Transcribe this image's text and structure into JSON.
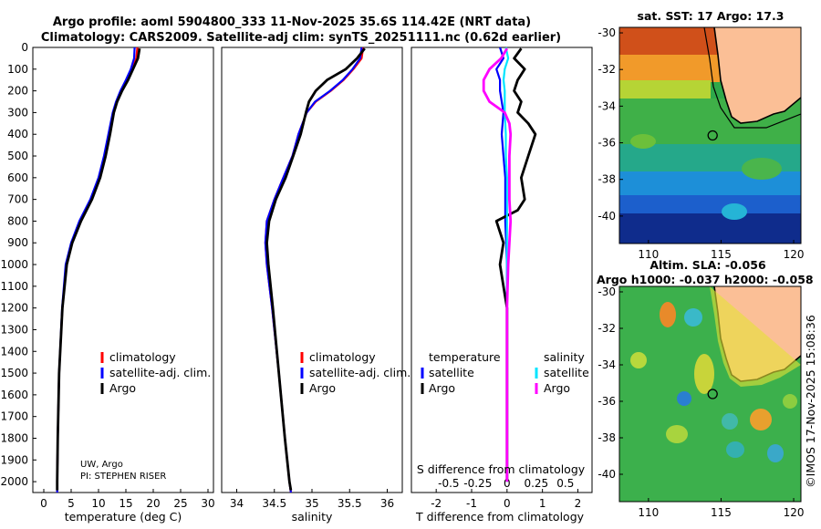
{
  "titles": {
    "line1": "Argo profile: aoml 5904800_333 11-Nov-2025 35.6S 114.42E (NRT data)",
    "line2": "Climatology: CARS2009. Satellite-adj clim: synTS_20251111.nc (0.62d earlier)"
  },
  "depth_ticks": [
    "0",
    "100",
    "200",
    "300",
    "400",
    "500",
    "600",
    "700",
    "800",
    "900",
    "1000",
    "1100",
    "1200",
    "1300",
    "1400",
    "1500",
    "1600",
    "1700",
    "1800",
    "1900",
    "2000"
  ],
  "credits": {
    "line1": "UW, Argo",
    "line2": "PI: STEPHEN RISER"
  },
  "legend_common": [
    "climatology",
    "satellite-adj. clim.",
    "Argo"
  ],
  "legend_diff": {
    "temp_title": "temperature",
    "sal_title": "salinity",
    "temp_items": [
      "satellite",
      "Argo"
    ],
    "sal_items": [
      "satellite",
      "Argo"
    ]
  },
  "colors": {
    "climatology": "#ff0000",
    "satellite": "#0000ff",
    "argo": "#000000",
    "sal_sat": "#00e5ff",
    "sal_argo": "#ff00ff"
  },
  "chart_data": [
    {
      "type": "line",
      "xlabel": "temperature (deg C)",
      "ylabel": "",
      "xlim": [
        -2,
        31
      ],
      "ylim": [
        2050,
        0
      ],
      "xticks": [
        "0",
        "5",
        "10",
        "15",
        "20",
        "25",
        "30"
      ],
      "series": [
        {
          "name": "climatology",
          "depth": [
            0,
            50,
            100,
            150,
            200,
            250,
            300,
            400,
            500,
            600,
            700,
            800,
            900,
            1000,
            1200,
            1500,
            1800,
            2000,
            2050
          ],
          "values": [
            17.1,
            16.9,
            16.2,
            15.2,
            14.2,
            13.3,
            12.7,
            11.9,
            11.1,
            10.1,
            8.6,
            6.6,
            5.1,
            4.1,
            3.4,
            2.8,
            2.55,
            2.45,
            2.45
          ]
        },
        {
          "name": "satellite-adj. clim.",
          "depth": [
            0,
            50,
            100,
            150,
            200,
            250,
            300,
            400,
            500,
            600,
            700,
            800,
            900,
            1000,
            1200,
            1500,
            1800,
            2000,
            2050
          ],
          "values": [
            16.6,
            16.5,
            15.9,
            15.0,
            14.0,
            13.2,
            12.6,
            11.8,
            11.0,
            10.0,
            8.5,
            6.5,
            5.0,
            4.0,
            3.35,
            2.8,
            2.55,
            2.45,
            2.45
          ]
        },
        {
          "name": "Argo",
          "depth": [
            5,
            50,
            100,
            150,
            200,
            250,
            300,
            400,
            500,
            600,
            700,
            800,
            900,
            1000,
            1200,
            1500,
            1800,
            2000,
            2040
          ],
          "values": [
            17.5,
            17.2,
            16.3,
            15.4,
            14.3,
            13.4,
            12.8,
            12.1,
            11.3,
            10.3,
            8.8,
            6.8,
            5.2,
            4.2,
            3.4,
            2.8,
            2.55,
            2.45,
            2.45
          ]
        }
      ]
    },
    {
      "type": "line",
      "xlabel": "salinity",
      "ylabel": "",
      "xlim": [
        33.8,
        36.2
      ],
      "ylim": [
        2050,
        0
      ],
      "xticks": [
        "34",
        "34.5",
        "35",
        "35.5",
        "36"
      ],
      "series": [
        {
          "name": "climatology",
          "depth": [
            0,
            50,
            100,
            150,
            200,
            250,
            300,
            400,
            500,
            600,
            700,
            800,
            900,
            1000,
            1200,
            1500,
            1800,
            2000,
            2050
          ],
          "values": [
            35.68,
            35.66,
            35.55,
            35.42,
            35.25,
            35.05,
            34.93,
            34.82,
            34.74,
            34.62,
            34.5,
            34.4,
            34.38,
            34.4,
            34.47,
            34.56,
            34.64,
            34.7,
            34.72
          ]
        },
        {
          "name": "satellite-adj. clim.",
          "depth": [
            0,
            50,
            100,
            150,
            200,
            250,
            300,
            400,
            500,
            600,
            700,
            800,
            900,
            1000,
            1200,
            1500,
            1800,
            2000,
            2050
          ],
          "values": [
            35.66,
            35.64,
            35.54,
            35.41,
            35.24,
            35.04,
            34.93,
            34.82,
            34.74,
            34.62,
            34.5,
            34.4,
            34.38,
            34.4,
            34.47,
            34.56,
            34.64,
            34.7,
            34.72
          ]
        },
        {
          "name": "Argo",
          "depth": [
            5,
            50,
            100,
            150,
            200,
            250,
            300,
            400,
            500,
            600,
            700,
            800,
            900,
            1000,
            1200,
            1500,
            1800,
            2000,
            2040
          ],
          "values": [
            35.7,
            35.6,
            35.45,
            35.2,
            35.05,
            34.96,
            34.92,
            34.85,
            34.75,
            34.65,
            34.52,
            34.43,
            34.4,
            34.42,
            34.48,
            34.56,
            34.64,
            34.7,
            34.72
          ]
        }
      ]
    },
    {
      "type": "line",
      "xlabel": "T difference from climatology",
      "ylabel": "",
      "xlim": [
        -2.7,
        2.4
      ],
      "ylim": [
        2050,
        0
      ],
      "xticks": [
        "-2",
        "-1",
        "0",
        "1",
        "2"
      ],
      "second_axis": {
        "label": "S difference from climatology",
        "ticks": [
          "-0.5",
          "-0.25",
          "0",
          "0.25",
          "0.5"
        ]
      },
      "series": [
        {
          "name": "temperature satellite",
          "depth": [
            0,
            50,
            100,
            150,
            200,
            300,
            400,
            500,
            600,
            800,
            1000,
            1200,
            1500,
            1800,
            2000
          ],
          "values": [
            -0.2,
            -0.1,
            -0.3,
            -0.2,
            -0.2,
            -0.1,
            -0.15,
            -0.1,
            -0.05,
            -0.05,
            0,
            0,
            0,
            0,
            0
          ]
        },
        {
          "name": "temperature Argo",
          "depth": [
            5,
            50,
            100,
            150,
            200,
            250,
            300,
            350,
            400,
            500,
            600,
            700,
            750,
            800,
            900,
            1000,
            1100,
            1200,
            1500,
            1800,
            2000
          ],
          "values": [
            0.4,
            0.2,
            0.5,
            0.3,
            0.2,
            0.4,
            0.3,
            0.6,
            0.8,
            0.6,
            0.4,
            0.5,
            0.3,
            -0.3,
            -0.1,
            -0.2,
            -0.1,
            0,
            0,
            0,
            0
          ]
        },
        {
          "name": "salinity satellite",
          "depth": [
            0,
            50,
            100,
            150,
            200,
            300,
            400,
            500,
            600,
            800,
            1000,
            1200,
            1500,
            1800,
            2000
          ],
          "values": [
            -0.01,
            0.01,
            -0.02,
            -0.03,
            -0.02,
            -0.02,
            -0.01,
            -0.01,
            0,
            0,
            0,
            0,
            0,
            0,
            0
          ]
        },
        {
          "name": "salinity Argo",
          "depth": [
            5,
            50,
            100,
            150,
            200,
            250,
            300,
            350,
            400,
            500,
            600,
            700,
            800,
            900,
            1000,
            1200,
            1500,
            1800,
            2000
          ],
          "values": [
            0.0,
            -0.05,
            -0.15,
            -0.2,
            -0.2,
            -0.15,
            -0.02,
            0.02,
            0.03,
            0.02,
            0.02,
            0.02,
            0.03,
            0.02,
            0.01,
            0,
            0,
            0,
            0
          ]
        }
      ]
    },
    {
      "type": "heatmap",
      "title": "sat. SST: 17 Argo: 17.3",
      "xlim": [
        108,
        120.5
      ],
      "ylim": [
        -41.5,
        -29.7
      ],
      "xticks": [
        "110",
        "115",
        "120"
      ],
      "yticks": [
        "-30",
        "-32",
        "-34",
        "-36",
        "-38",
        "-40"
      ],
      "argo_position": [
        114.42,
        -35.6
      ]
    },
    {
      "type": "heatmap",
      "title": "Altim. SLA: -0.056",
      "subtitle": "Argo h1000: -0.037 h2000: -0.058",
      "xlim": [
        108,
        120.5
      ],
      "ylim": [
        -41.5,
        -29.7
      ],
      "xticks": [
        "110",
        "115",
        "120"
      ],
      "yticks": [
        "-30",
        "-32",
        "-34",
        "-36",
        "-38",
        "-40"
      ],
      "argo_position": [
        114.42,
        -35.6
      ]
    }
  ],
  "timestamp": "©IMOS 17-Nov-2025 15:08:36"
}
